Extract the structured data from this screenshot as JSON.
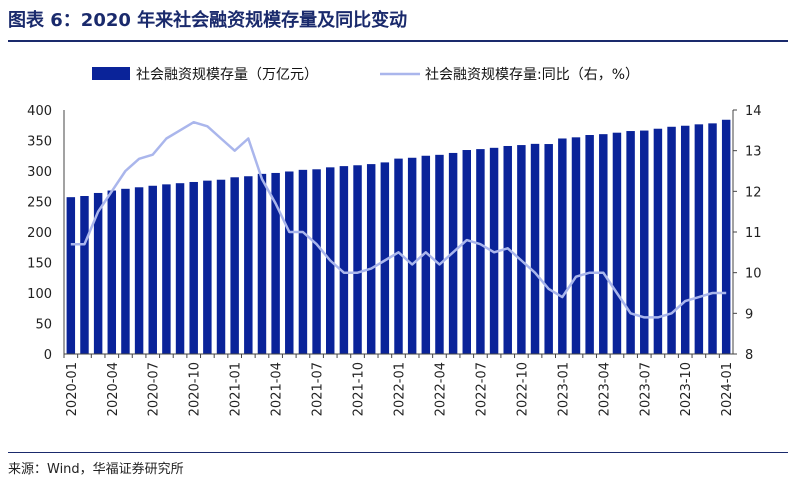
{
  "title": "图表 6：2020 年来社会融资规模存量及同比变动",
  "source": "来源：Wind，华福证券研究所",
  "colors": {
    "bar": "#0a2399",
    "line": "#aab6ec",
    "title": "#1a2a6c"
  },
  "chart_data": {
    "type": "bar",
    "legend_position": "top",
    "grid": false,
    "series": [
      {
        "name": "社会融资规模存量（万亿元）",
        "type": "bar",
        "axis": "left",
        "values": [
          257.1,
          259.0,
          264.0,
          268.0,
          270.8,
          273.3,
          275.8,
          278.1,
          280.0,
          282.0,
          284.2,
          285.7,
          289.7,
          291.4,
          295.3,
          296.8,
          299.2,
          301.9,
          302.8,
          306.0,
          308.0,
          309.4,
          311.3,
          314.1,
          320.3,
          321.7,
          325.0,
          326.5,
          329.6,
          334.4,
          335.9,
          338.0,
          341.0,
          342.5,
          344.5,
          344.2,
          353.3,
          355.2,
          359.0,
          360.4,
          362.8,
          365.5,
          366.3,
          369.3,
          372.5,
          374.2,
          376.5,
          378.1,
          384.0
        ]
      },
      {
        "name": "社会融资规模存量:同比（右，%）",
        "type": "line",
        "axis": "right",
        "values": [
          10.7,
          10.7,
          11.5,
          12.0,
          12.5,
          12.8,
          12.9,
          13.3,
          13.5,
          13.7,
          13.6,
          13.3,
          13.0,
          13.3,
          12.3,
          11.7,
          11.0,
          11.0,
          10.7,
          10.3,
          10.0,
          10.0,
          10.1,
          10.3,
          10.5,
          10.2,
          10.5,
          10.2,
          10.5,
          10.8,
          10.7,
          10.5,
          10.6,
          10.3,
          10.0,
          9.6,
          9.4,
          9.9,
          10.0,
          10.0,
          9.5,
          9.0,
          8.9,
          8.9,
          9.0,
          9.3,
          9.4,
          9.5,
          9.5
        ]
      }
    ],
    "x_start": "2020-01",
    "x_tick_labels": [
      "2020-01",
      "2020-04",
      "2020-07",
      "2020-10",
      "2021-01",
      "2021-04",
      "2021-07",
      "2021-10",
      "2022-01",
      "2022-04",
      "2022-07",
      "2022-10",
      "2023-01",
      "2023-04",
      "2023-07",
      "2023-10",
      "2024-01"
    ],
    "y_left": {
      "min": 0,
      "max": 400,
      "ticks": [
        "0",
        "50",
        "100",
        "150",
        "200",
        "250",
        "300",
        "350",
        "400"
      ]
    },
    "y_right": {
      "min": 8,
      "max": 14,
      "ticks": [
        "8",
        "9",
        "10",
        "11",
        "12",
        "13",
        "14"
      ]
    }
  }
}
